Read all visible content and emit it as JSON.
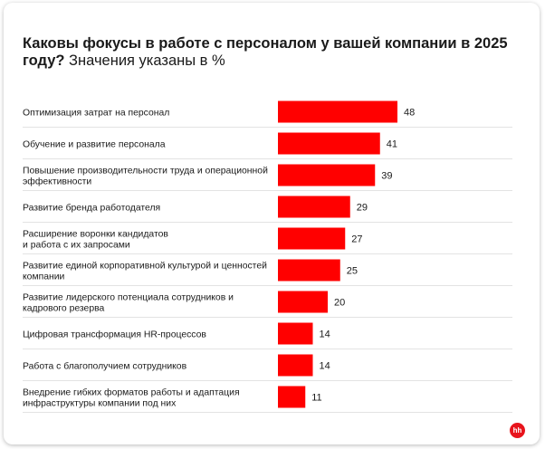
{
  "title_bold": "Каковы фокусы в работе с персоналом у вашей компании в 2025 году?",
  "title_light": "Значения указаны в %",
  "logo_text": "hh",
  "colors": {
    "bar": "#ff0000",
    "separator": "#c8c8c8"
  },
  "chart_data": {
    "type": "bar",
    "orientation": "horizontal",
    "title": "Каковы фокусы в работе с персоналом у вашей компании в 2025 году?",
    "subtitle": "Значения указаны в %",
    "categories": [
      [
        "Оптимизация затрат на персонал"
      ],
      [
        "Обучение и развитие персонала"
      ],
      [
        "Повышение производительности труда и операционной",
        "эффективности"
      ],
      [
        "Развитие бренда работодателя"
      ],
      [
        "Расширение воронки кандидатов",
        "и работа с их запросами"
      ],
      [
        "Развитие единой корпоративной культурой и ценностей",
        "компании"
      ],
      [
        "Развитие лидерского потенциала сотрудников и",
        "кадрового резерва"
      ],
      [
        "Цифровая трансформация HR-процессов"
      ],
      [
        "Работа с благополучием сотрудников"
      ],
      [
        "Внедрение гибких форматов работы и адаптация",
        "инфраструктуры компании под них"
      ]
    ],
    "values": [
      48,
      41,
      39,
      29,
      27,
      25,
      20,
      14,
      14,
      11
    ],
    "xlim": [
      0,
      48
    ],
    "grid": false,
    "legend": "none"
  }
}
